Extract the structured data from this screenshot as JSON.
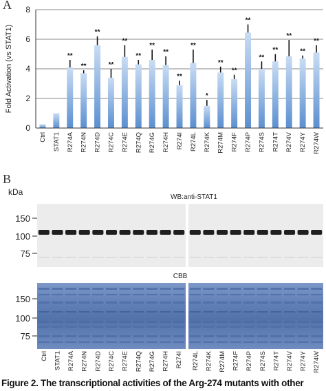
{
  "panels": {
    "a": "A",
    "b": "B"
  },
  "chart_data": {
    "type": "bar",
    "ylabel": "Fold Activation (vs STAT1)",
    "ylim": [
      0,
      8
    ],
    "yticks": [
      0,
      2,
      4,
      6,
      8
    ],
    "grid": true,
    "categories": [
      "Ctrl",
      "STAT1",
      "R274A",
      "R274N",
      "R274D",
      "R274C",
      "R274E",
      "R274Q",
      "R274G",
      "R274H",
      "R274I",
      "R274L",
      "R274K",
      "R274M",
      "R274F",
      "R274P",
      "R274S",
      "R274T",
      "R274V",
      "R274Y",
      "R274W"
    ],
    "values": [
      0.25,
      1.0,
      4.1,
      3.7,
      5.6,
      3.4,
      4.8,
      4.3,
      4.6,
      4.25,
      2.9,
      4.4,
      1.5,
      3.75,
      3.3,
      6.45,
      4.0,
      4.5,
      4.85,
      4.7,
      5.1
    ],
    "errors": [
      0,
      0,
      0.5,
      0.2,
      0.6,
      0.6,
      0.8,
      0.3,
      0.7,
      0.6,
      0.3,
      0.9,
      0.4,
      0.4,
      0.3,
      0.55,
      0.5,
      0.5,
      1.1,
      0.2,
      0.5
    ],
    "significance": [
      "",
      "",
      "**",
      "**",
      "**",
      "**",
      "**",
      "**",
      "**",
      "**",
      "**",
      "**",
      "*",
      "**",
      "**",
      "**",
      "**",
      "**",
      "**",
      "**",
      "**"
    ]
  },
  "blots": {
    "kda_label": "kDa",
    "wb": {
      "title": "WB:anti-STAT1",
      "markers": [
        "150",
        "100",
        "75"
      ]
    },
    "cbb": {
      "title": "CBB",
      "markers": [
        "150",
        "100",
        "75"
      ]
    },
    "lanes_left": [
      "Ctrl",
      "STAT1",
      "R274A",
      "R274N",
      "R274D",
      "R274C",
      "R274E",
      "R274Q",
      "R274G",
      "R274H",
      "R274I"
    ],
    "lanes_right": [
      "R274L",
      "R274K",
      "R274M",
      "R274F",
      "R274P",
      "R274S",
      "R274T",
      "R274V",
      "R274Y",
      "R274W"
    ]
  },
  "caption": "Figure 2. The transcriptional activities of the Arg-274 mutants with other",
  "colors": {
    "bar_top": "#c9dcf3",
    "bar_bottom": "#5b8fd0",
    "gel_blue": "#5577ad"
  }
}
